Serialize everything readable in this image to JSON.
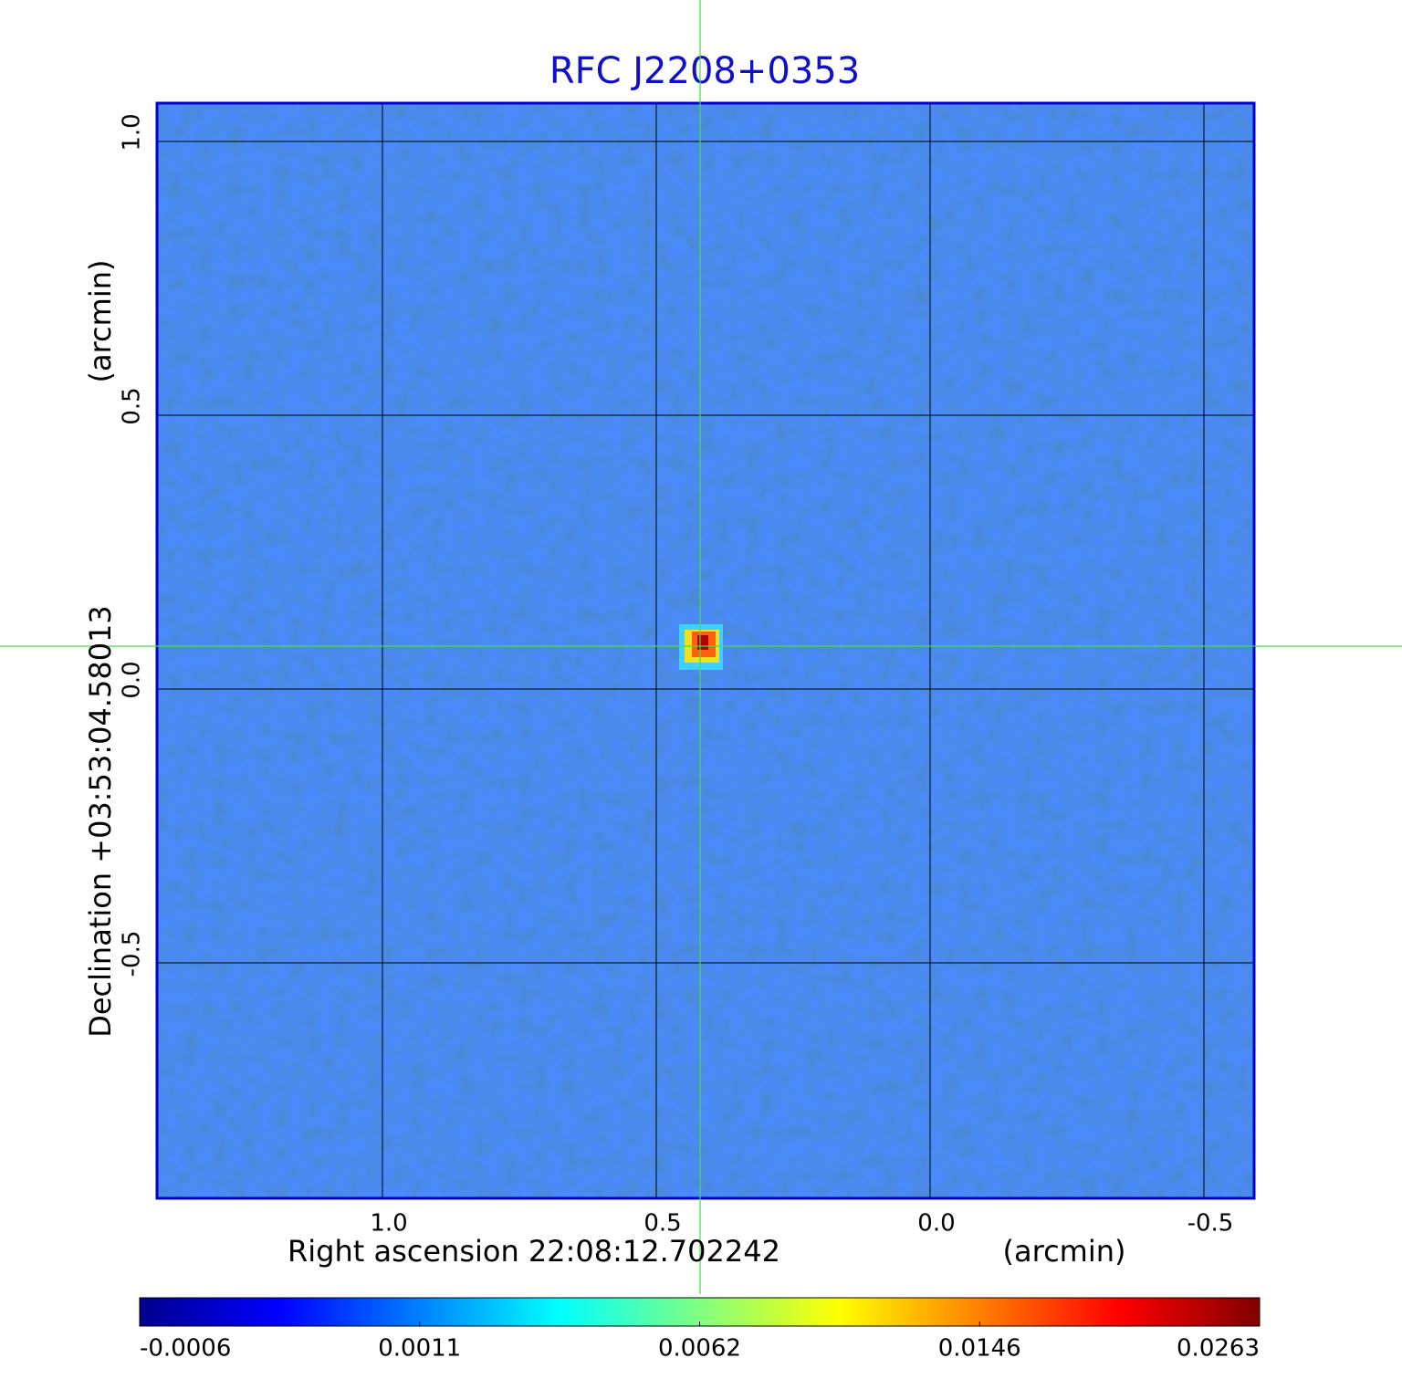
{
  "chart_data": {
    "type": "image",
    "title": "RFC J2208+0353",
    "title_color": "#1010c8",
    "xlabel": "Right ascension  22:08:12.702242",
    "xunit": "(arcmin)",
    "ylabel": "Declination  +03:53:04.58013",
    "yunit": "(arcmin)",
    "xlim": [
      1.4117,
      -0.5917
    ],
    "ylim": [
      -0.93,
      1.07
    ],
    "xticks": [
      {
        "value": 1,
        "label": "1.0"
      },
      0.5,
      {
        "value": 0,
        "label": "0.0"
      },
      -0.5
    ],
    "yticks": [
      {
        "value": 1,
        "label": "1.0"
      },
      0.5,
      {
        "value": 0,
        "label": "0.0"
      },
      -0.5
    ],
    "grid": true,
    "colorbar_ticks": [
      -0.0006,
      0.0011,
      0.0062,
      0.0146,
      0.0263
    ],
    "colormap": [
      "#00008f",
      "#0000ff",
      "#0080ff",
      "#00ffff",
      "#80ff80",
      "#ffff00",
      "#ff8000",
      "#ff0000",
      "#800000"
    ]
  }
}
